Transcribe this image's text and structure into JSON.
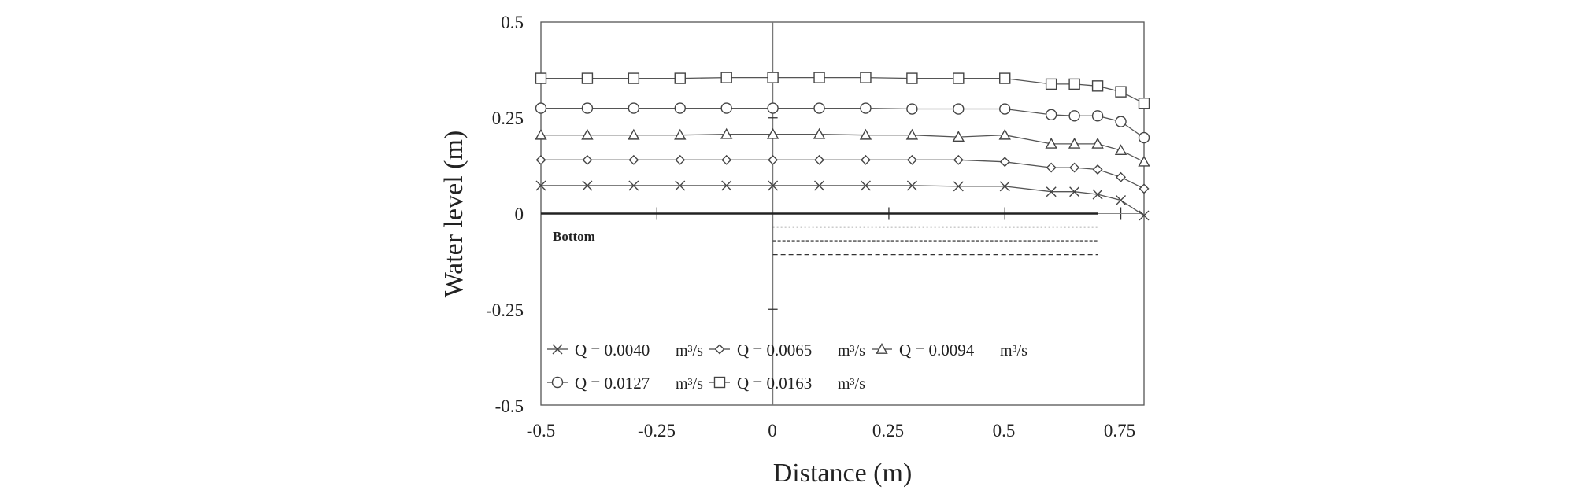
{
  "chart_data": {
    "type": "line",
    "title": "",
    "xlabel": "Distance (m)",
    "ylabel": "Water level (m)",
    "xlim": [
      -0.5,
      0.8
    ],
    "ylim": [
      -0.5,
      0.5
    ],
    "x_ticks": [
      "-0.5",
      "-0.25",
      "0",
      "0.25",
      "0.5",
      "0.75"
    ],
    "y_ticks": [
      "0.5",
      "0.25",
      "0",
      "-0.25",
      "-0.5"
    ],
    "grid": false,
    "legend_position": "bottom-left inside",
    "annotation": "Bottom",
    "series": [
      {
        "name": "Q = 0.0040",
        "unit": "m³/s",
        "marker": "x",
        "x": [
          -0.5,
          -0.4,
          -0.3,
          -0.2,
          -0.1,
          0,
          0.1,
          0.2,
          0.3,
          0.4,
          0.5,
          0.6,
          0.65,
          0.7,
          0.75,
          0.8
        ],
        "y": [
          0.073,
          0.073,
          0.073,
          0.073,
          0.073,
          0.073,
          0.073,
          0.073,
          0.073,
          0.071,
          0.071,
          0.057,
          0.057,
          0.05,
          0.035,
          -0.005
        ]
      },
      {
        "name": "Q = 0.0065",
        "unit": "m³/s",
        "marker": "diamond",
        "x": [
          -0.5,
          -0.4,
          -0.3,
          -0.2,
          -0.1,
          0,
          0.1,
          0.2,
          0.3,
          0.4,
          0.5,
          0.6,
          0.65,
          0.7,
          0.75,
          0.8
        ],
        "y": [
          0.14,
          0.14,
          0.14,
          0.14,
          0.14,
          0.14,
          0.14,
          0.14,
          0.14,
          0.14,
          0.135,
          0.12,
          0.12,
          0.115,
          0.095,
          0.065
        ]
      },
      {
        "name": "Q = 0.0094",
        "unit": "m³/s",
        "marker": "triangle",
        "x": [
          -0.5,
          -0.4,
          -0.3,
          -0.2,
          -0.1,
          0,
          0.1,
          0.2,
          0.3,
          0.4,
          0.5,
          0.6,
          0.65,
          0.7,
          0.75,
          0.8
        ],
        "y": [
          0.205,
          0.205,
          0.205,
          0.205,
          0.207,
          0.207,
          0.207,
          0.205,
          0.205,
          0.2,
          0.205,
          0.182,
          0.182,
          0.182,
          0.165,
          0.135
        ]
      },
      {
        "name": "Q = 0.0127",
        "unit": "m³/s",
        "marker": "circle",
        "x": [
          -0.5,
          -0.4,
          -0.3,
          -0.2,
          -0.1,
          0,
          0.1,
          0.2,
          0.3,
          0.4,
          0.5,
          0.6,
          0.65,
          0.7,
          0.75,
          0.8
        ],
        "y": [
          0.275,
          0.275,
          0.275,
          0.275,
          0.275,
          0.275,
          0.275,
          0.275,
          0.273,
          0.273,
          0.273,
          0.258,
          0.255,
          0.255,
          0.24,
          0.198
        ]
      },
      {
        "name": "Q = 0.0163",
        "unit": "m³/s",
        "marker": "square",
        "x": [
          -0.5,
          -0.4,
          -0.3,
          -0.2,
          -0.1,
          0,
          0.1,
          0.2,
          0.3,
          0.4,
          0.5,
          0.6,
          0.65,
          0.7,
          0.75,
          0.8
        ],
        "y": [
          0.353,
          0.353,
          0.353,
          0.353,
          0.355,
          0.355,
          0.355,
          0.355,
          0.353,
          0.353,
          0.353,
          0.338,
          0.338,
          0.333,
          0.318,
          0.288
        ]
      }
    ],
    "reference_lines": [
      {
        "from": -0.5,
        "to": 0.7,
        "y": 0,
        "style": "solid"
      },
      {
        "from": 0,
        "to": 0.7,
        "y": -0.035,
        "style": "dotted"
      },
      {
        "from": 0,
        "to": 0.7,
        "y": -0.072,
        "style": "dash-heavy"
      },
      {
        "from": 0,
        "to": 0.7,
        "y": -0.107,
        "style": "dashed"
      }
    ]
  }
}
